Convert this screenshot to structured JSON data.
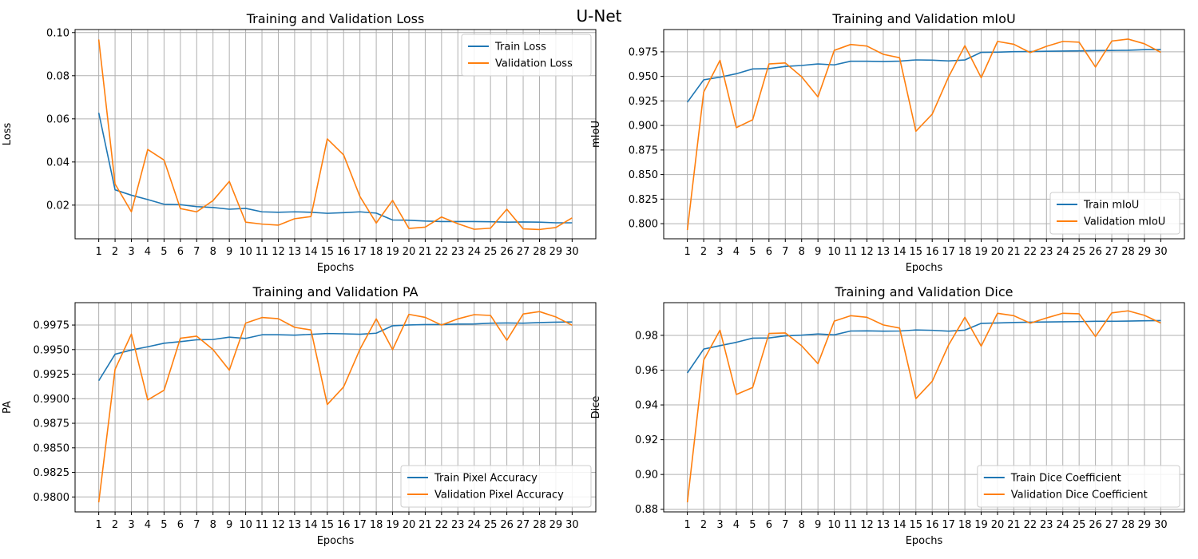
{
  "figure": {
    "suptitle": "U-Net",
    "colors": {
      "train": "#1f77b4",
      "validation": "#ff7f0e",
      "grid": "#b0b0b0"
    }
  },
  "chart_data": [
    {
      "type": "line",
      "title": "Training and Validation Loss",
      "xlabel": "Epochs",
      "ylabel": "Loss",
      "x": [
        1,
        2,
        3,
        4,
        5,
        6,
        7,
        8,
        9,
        10,
        11,
        12,
        13,
        14,
        15,
        16,
        17,
        18,
        19,
        20,
        21,
        22,
        23,
        24,
        25,
        26,
        27,
        28,
        29,
        30
      ],
      "yticks": [
        0.02,
        0.04,
        0.06,
        0.08,
        0.1
      ],
      "ytick_labels": [
        "0.02",
        "0.04",
        "0.06",
        "0.08",
        "0.10"
      ],
      "ylim": [
        0.0044,
        0.1014
      ],
      "grid": true,
      "legend_position": "upper right",
      "series": [
        {
          "name": "Train Loss",
          "color": "#1f77b4",
          "values": [
            0.0628,
            0.0271,
            0.0246,
            0.0226,
            0.0204,
            0.0202,
            0.0193,
            0.0189,
            0.0181,
            0.0185,
            0.0169,
            0.0167,
            0.0169,
            0.0167,
            0.0162,
            0.0165,
            0.0169,
            0.0163,
            0.0131,
            0.013,
            0.0126,
            0.0124,
            0.0124,
            0.0124,
            0.0123,
            0.0121,
            0.0122,
            0.0121,
            0.0118,
            0.0118
          ]
        },
        {
          "name": "Validation Loss",
          "color": "#ff7f0e",
          "values": [
            0.0968,
            0.0298,
            0.0169,
            0.0458,
            0.0409,
            0.0184,
            0.0169,
            0.0221,
            0.031,
            0.0121,
            0.0112,
            0.0107,
            0.0137,
            0.0147,
            0.0507,
            0.0433,
            0.024,
            0.0117,
            0.0222,
            0.0092,
            0.0098,
            0.0145,
            0.0114,
            0.0088,
            0.0093,
            0.0181,
            0.009,
            0.0087,
            0.0096,
            0.0141
          ]
        }
      ]
    },
    {
      "type": "line",
      "title": "Training and Validation mIoU",
      "xlabel": "Epochs",
      "ylabel": "mIoU",
      "x": [
        1,
        2,
        3,
        4,
        5,
        6,
        7,
        8,
        9,
        10,
        11,
        12,
        13,
        14,
        15,
        16,
        17,
        18,
        19,
        20,
        21,
        22,
        23,
        24,
        25,
        26,
        27,
        28,
        29,
        30
      ],
      "yticks": [
        0.8,
        0.825,
        0.85,
        0.875,
        0.9,
        0.925,
        0.95,
        0.975
      ],
      "ytick_labels": [
        "0.800",
        "0.825",
        "0.850",
        "0.875",
        "0.900",
        "0.925",
        "0.950",
        "0.975"
      ],
      "ylim": [
        0.7846,
        0.9977
      ],
      "grid": true,
      "legend_position": "lower right",
      "series": [
        {
          "name": "Train mIoU",
          "color": "#1f77b4",
          "values": [
            0.9237,
            0.9465,
            0.9492,
            0.9527,
            0.9576,
            0.9579,
            0.9601,
            0.9611,
            0.9627,
            0.9617,
            0.9654,
            0.9654,
            0.9651,
            0.9655,
            0.9668,
            0.9665,
            0.9657,
            0.9667,
            0.9745,
            0.9747,
            0.9752,
            0.9753,
            0.9756,
            0.9758,
            0.976,
            0.9763,
            0.9764,
            0.9766,
            0.9772,
            0.9773
          ]
        },
        {
          "name": "Validation mIoU",
          "color": "#ff7f0e",
          "values": [
            0.7935,
            0.934,
            0.9664,
            0.8978,
            0.9058,
            0.9627,
            0.9637,
            0.9496,
            0.9291,
            0.9765,
            0.9825,
            0.9809,
            0.9725,
            0.969,
            0.8941,
            0.9115,
            0.9494,
            0.9812,
            0.9487,
            0.9856,
            0.9827,
            0.9742,
            0.9806,
            0.9856,
            0.9848,
            0.9595,
            0.986,
            0.988,
            0.9832,
            0.9745
          ]
        }
      ]
    },
    {
      "type": "line",
      "title": "Training and Validation PA",
      "xlabel": "Epochs",
      "ylabel": "PA",
      "x": [
        1,
        2,
        3,
        4,
        5,
        6,
        7,
        8,
        9,
        10,
        11,
        12,
        13,
        14,
        15,
        16,
        17,
        18,
        19,
        20,
        21,
        22,
        23,
        24,
        25,
        26,
        27,
        28,
        29,
        30
      ],
      "yticks": [
        0.98,
        0.9825,
        0.985,
        0.9875,
        0.99,
        0.9925,
        0.995,
        0.9975
      ],
      "ytick_labels": [
        "0.9800",
        "0.9825",
        "0.9850",
        "0.9875",
        "0.9900",
        "0.9925",
        "0.9950",
        "0.9975"
      ],
      "ylim": [
        0.97848,
        0.99978
      ],
      "grid": true,
      "legend_position": "lower right",
      "series": [
        {
          "name": "Train Pixel Accuracy",
          "color": "#1f77b4",
          "values": [
            0.99184,
            0.99453,
            0.99496,
            0.99529,
            0.99565,
            0.99581,
            0.996,
            0.99603,
            0.99627,
            0.99614,
            0.99651,
            0.99651,
            0.99647,
            0.99655,
            0.99664,
            0.99661,
            0.99656,
            0.99667,
            0.99743,
            0.99751,
            0.99755,
            0.99755,
            0.9976,
            0.99761,
            0.99769,
            0.99771,
            0.99769,
            0.99775,
            0.99779,
            0.99781
          ]
        },
        {
          "name": "Validation Pixel Accuracy",
          "color": "#ff7f0e",
          "values": [
            0.97945,
            0.993,
            0.99658,
            0.98988,
            0.99086,
            0.99616,
            0.99637,
            0.995,
            0.99291,
            0.9977,
            0.99827,
            0.99815,
            0.99727,
            0.997,
            0.98941,
            0.9912,
            0.99503,
            0.99813,
            0.995,
            0.99859,
            0.99828,
            0.9975,
            0.99813,
            0.99856,
            0.99848,
            0.99595,
            0.99863,
            0.99887,
            0.99833,
            0.99748
          ]
        }
      ]
    },
    {
      "type": "line",
      "title": "Training and Validation Dice",
      "xlabel": "Epochs",
      "ylabel": "Dice",
      "x": [
        1,
        2,
        3,
        4,
        5,
        6,
        7,
        8,
        9,
        10,
        11,
        12,
        13,
        14,
        15,
        16,
        17,
        18,
        19,
        20,
        21,
        22,
        23,
        24,
        25,
        26,
        27,
        28,
        29,
        30
      ],
      "yticks": [
        0.88,
        0.9,
        0.92,
        0.94,
        0.96,
        0.98
      ],
      "ytick_labels": [
        "0.88",
        "0.90",
        "0.92",
        "0.94",
        "0.96",
        "0.98"
      ],
      "ylim": [
        0.8785,
        0.9988
      ],
      "grid": true,
      "legend_position": "lower right",
      "series": [
        {
          "name": "Train Dice Coefficient",
          "color": "#1f77b4",
          "values": [
            0.9584,
            0.9721,
            0.9741,
            0.976,
            0.9784,
            0.9785,
            0.9797,
            0.9801,
            0.9808,
            0.9803,
            0.9825,
            0.9826,
            0.9824,
            0.9825,
            0.9831,
            0.9829,
            0.9824,
            0.983,
            0.9869,
            0.9871,
            0.9874,
            0.9876,
            0.9877,
            0.9878,
            0.9879,
            0.9881,
            0.9881,
            0.9882,
            0.9884,
            0.9885
          ]
        },
        {
          "name": "Validation Dice Coefficient",
          "color": "#ff7f0e",
          "values": [
            0.884,
            0.9658,
            0.983,
            0.946,
            0.95,
            0.9811,
            0.9814,
            0.974,
            0.9637,
            0.9882,
            0.9913,
            0.9904,
            0.986,
            0.9842,
            0.9436,
            0.9536,
            0.9744,
            0.9904,
            0.9738,
            0.9927,
            0.9913,
            0.987,
            0.99,
            0.9927,
            0.9924,
            0.9793,
            0.9929,
            0.9941,
            0.9915,
            0.9871
          ]
        }
      ]
    }
  ]
}
